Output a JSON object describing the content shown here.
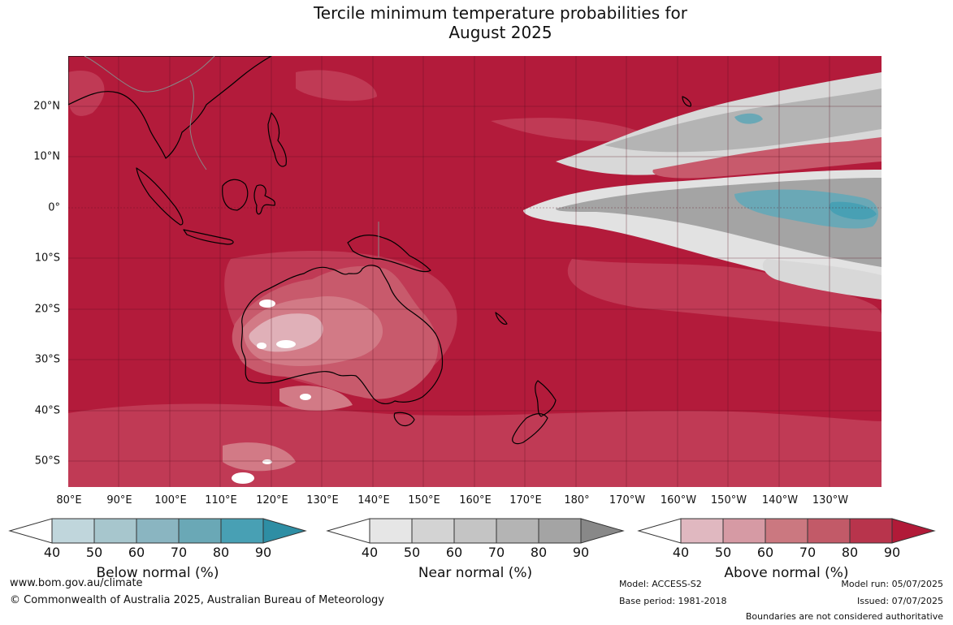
{
  "title": {
    "line1": "Tercile minimum temperature probabilities for",
    "line2": "August 2025"
  },
  "map": {
    "region": "Australia, Maritime Continent and western Pacific",
    "lat_labels": [
      "20°N",
      "10°N",
      "0°",
      "10°S",
      "20°S",
      "30°S",
      "40°S",
      "50°S"
    ],
    "lon_labels": [
      "80°E",
      "90°E",
      "100°E",
      "110°E",
      "120°E",
      "130°E",
      "140°E",
      "150°E",
      "160°E",
      "170°E",
      "180°",
      "170°W",
      "160°W",
      "150°W",
      "140°W",
      "130°W"
    ],
    "colors": {
      "ocean_dominant": "#b31b3b",
      "above_80": "#c03a55",
      "above_70": "#c85a6c",
      "above_60": "#d27a86",
      "above_50": "#e0b0b8",
      "near_normal": "#b4b4b4",
      "below_normal": "#4aa0b4",
      "coastline": "#000000",
      "borders": "#888888"
    }
  },
  "colorbars": [
    {
      "label": "Below normal (%)",
      "ticks": [
        "40",
        "50",
        "60",
        "70",
        "80",
        "90"
      ],
      "colors": [
        "#c0d6dc",
        "#a7c6cd",
        "#8ab5c1",
        "#6aa8b6",
        "#48a0b4",
        "#2e8ea4"
      ]
    },
    {
      "label": "Near normal (%)",
      "ticks": [
        "40",
        "50",
        "60",
        "70",
        "80",
        "90"
      ],
      "colors": [
        "#e6e6e6",
        "#d3d3d3",
        "#c4c4c4",
        "#b4b4b4",
        "#a4a4a4",
        "#888888"
      ]
    },
    {
      "label": "Above normal (%)",
      "ticks": [
        "40",
        "50",
        "60",
        "70",
        "80",
        "90"
      ],
      "colors": [
        "#e0b8c0",
        "#d69aa4",
        "#cb7880",
        "#c25a68",
        "#b8344c",
        "#b11a38"
      ]
    }
  ],
  "footer": {
    "website": "www.bom.gov.au/climate",
    "copyright": "© Commonwealth of Australia 2025, Australian Bureau of Meteorology",
    "model": "Model: ACCESS-S2",
    "base_period": "Base period: 1981-2018",
    "model_run": "Model run: 05/07/2025",
    "issued": "Issued: 07/07/2025",
    "disclaimer": "Boundaries are not considered authoritative"
  }
}
